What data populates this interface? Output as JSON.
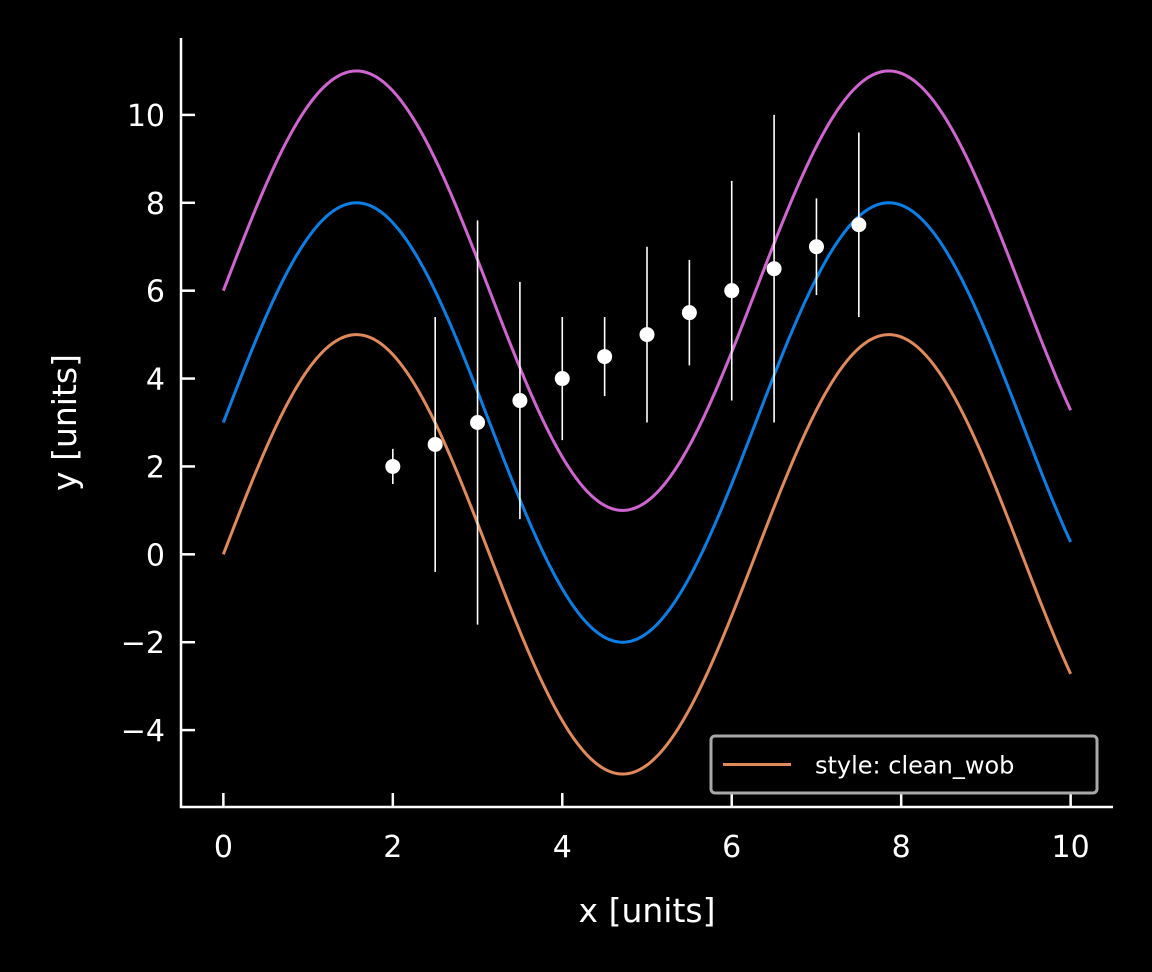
{
  "chart_data": {
    "type": "line",
    "xlabel": "x [units]",
    "ylabel": "y [units]",
    "xlim": [
      -0.5,
      10.5
    ],
    "ylim": [
      -5.75,
      11.75
    ],
    "xticks": [
      0,
      2,
      4,
      6,
      8,
      10
    ],
    "yticks": [
      -4,
      -2,
      0,
      2,
      4,
      6,
      8,
      10
    ],
    "xtick_labels": [
      "0",
      "2",
      "4",
      "6",
      "8",
      "10"
    ],
    "ytick_labels": [
      "−4",
      "−2",
      "0",
      "2",
      "4",
      "6",
      "8",
      "10"
    ],
    "grid": false,
    "series": [
      {
        "kind": "sine",
        "amplitude": 5,
        "offset": 0,
        "color": "#e0895a",
        "x_range": [
          0,
          10
        ]
      },
      {
        "kind": "sine",
        "amplitude": 5,
        "offset": 3,
        "color": "#0a7fe6",
        "x_range": [
          0,
          10
        ]
      },
      {
        "kind": "sine",
        "amplitude": 5,
        "offset": 6,
        "color": "#d064d0",
        "x_range": [
          0,
          10
        ]
      }
    ],
    "errorbar": {
      "color": "#ffffff",
      "x": [
        2.0,
        2.5,
        3.0,
        3.5,
        4.0,
        4.5,
        5.0,
        5.5,
        6.0,
        6.5,
        7.0,
        7.5
      ],
      "y": [
        2.0,
        2.5,
        3.0,
        3.5,
        4.0,
        4.5,
        5.0,
        5.5,
        6.0,
        6.5,
        7.0,
        7.5
      ],
      "yerr": [
        0.4,
        2.9,
        4.6,
        2.7,
        1.4,
        0.9,
        2.0,
        1.2,
        2.5,
        3.5,
        1.1,
        2.1
      ]
    },
    "legend": {
      "placement": "lower-right",
      "entries": [
        {
          "label": "style: clean_wob",
          "color": "#e0895a"
        }
      ]
    }
  }
}
